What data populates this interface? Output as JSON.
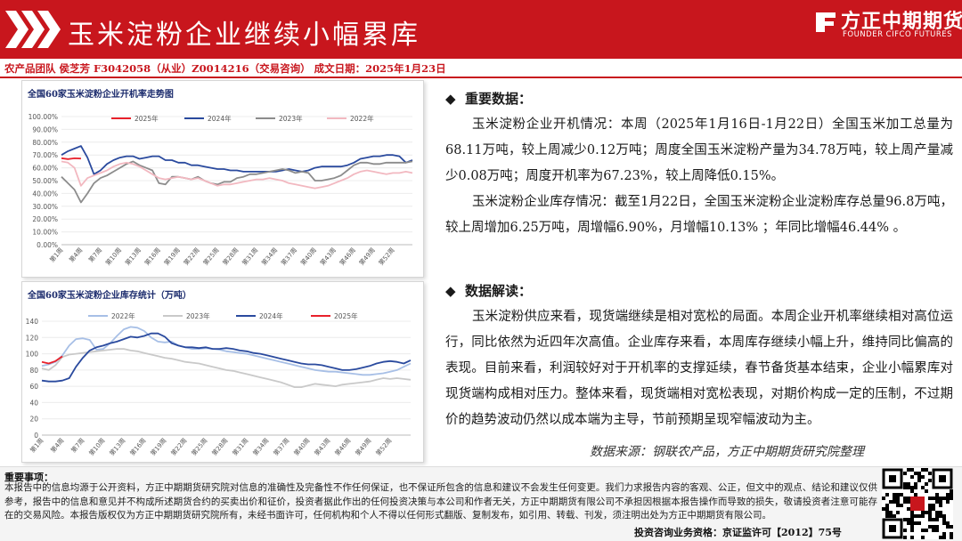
{
  "header": {
    "title": "玉米淀粉企业继续小幅累库",
    "brand_cn": "方正中期期货",
    "brand_en": "FOUNDER CIFCO FUTURES",
    "colors": {
      "brand_red": "#c8161d"
    }
  },
  "subline": "农产品团队  侯芝芳   F3042058（从业）Z0014216（交易咨询）  成文日期：2025年1月23日",
  "right": {
    "key_data_heading": "重要数据：",
    "key_data_p1": "玉米淀粉企业开机情况：本周（2025年1月16日-1月22日）全国玉米加工总量为68.11万吨，较上周减少0.12万吨；周度全国玉米淀粉产量为34.78万吨，较上周产量减少0.08万吨；周度开机率为67.23%，较上周降低0.15%。",
    "key_data_p2": "玉米淀粉企业库存情况：截至1月22日，全国玉米淀粉企业淀粉库存总量96.8万吨，较上周增加6.25万吨，周增幅6.90%，月增幅10.13% ；年同比增幅46.44% 。",
    "analysis_heading": "数据解读：",
    "analysis_p": "玉米淀粉供应来看，现货端继续是相对宽松的局面。本周企业开机率继续相对高位运行，同比依然为近四年次高值。企业库存来看，本周库存继续小幅上升，维持同比偏高的表现。目前来看，利润较好对于开机率的支撑延续，春节备货基本结束，企业小幅累库对现货端构成相对压力。整体来看，现货端相对宽松表现，对期价构成一定的压制，不过期价的趋势波动仍然以成本端为主导，节前预期呈现窄幅波动为主。",
    "source": "数据来源：钢联农产品，方正中期期货研究院整理"
  },
  "footer": {
    "title": "重要事项：",
    "body": "本报告中的信息均源于公开资料，方正中期期货研究院对信息的准确性及完备性不作任何保证，也不保证所包含的信息和建议不会发生任何变更。我们力求报告内容的客观、公正，但文中的观点、结论和建议仅供参考，报告中的信息和意见并不构成所述期货合约的买卖出价和征价，投资者据此作出的任何投资决策与本公司和作者无关，方正中期期货有限公司不承担因根据本报告操作而导致的损失，敬请投资者注意可能存在的交易风险。本报告版权仅为方正中期期货研究院所有，未经书面许可，任何机构和个人不得以任何形式翻版、复制发布，如引用、转载、刊发，须注明出处为方正中期期货有限公司。",
    "license": "投资咨询业务资格：京证监许可【2012】75号"
  },
  "chart_data": [
    {
      "type": "line",
      "title": "全国60家玉米淀粉企业开机率走势图",
      "yticks": [
        "0.00%",
        "10.00%",
        "20.00%",
        "30.00%",
        "40.00%",
        "50.00%",
        "60.00%",
        "70.00%",
        "80.00%",
        "90.00%",
        "100.00%"
      ],
      "ylim": [
        0,
        100
      ],
      "xticks": [
        "第1周",
        "第4周",
        "第7周",
        "第10周",
        "第13周",
        "第16周",
        "第19周",
        "第22周",
        "第25周",
        "第28周",
        "第31周",
        "第34周",
        "第37周",
        "第40周",
        "第43周",
        "第46周",
        "第49周",
        "第52周"
      ],
      "legend_position": "top",
      "series": [
        {
          "name": "2025年",
          "color": "#e8212b",
          "values": [
            67.5,
            66.8,
            67.4,
            67.2
          ]
        },
        {
          "name": "2024年",
          "color": "#2a4a9e",
          "values": [
            70,
            73,
            75,
            77,
            68,
            55,
            58,
            63,
            66,
            68,
            69,
            69,
            67,
            68,
            69,
            69,
            66,
            66,
            64,
            64,
            62,
            62,
            61,
            60,
            59,
            59,
            58,
            58,
            57,
            57,
            57,
            57,
            57,
            57,
            58,
            59,
            58,
            57,
            58,
            60,
            61,
            61,
            61,
            61,
            62,
            64,
            67,
            68,
            69,
            69,
            70,
            70,
            69,
            64,
            66
          ]
        },
        {
          "name": "2023年",
          "color": "#8c8c8c",
          "values": [
            53,
            48,
            43,
            33,
            40,
            48,
            52,
            54,
            57,
            60,
            63,
            65,
            62,
            60,
            58,
            48,
            47,
            53,
            53,
            52,
            51,
            53,
            50,
            48,
            47,
            49,
            49,
            52,
            53,
            55,
            55,
            56,
            57,
            58,
            59,
            58,
            56,
            57,
            56,
            50,
            50,
            51,
            52,
            54,
            58,
            62,
            64,
            64,
            63,
            63,
            64,
            64,
            64,
            64,
            65
          ]
        },
        {
          "name": "2022年",
          "color": "#f2b8c0",
          "values": [
            65,
            64,
            60,
            46,
            52,
            54,
            56,
            58,
            61,
            63,
            64,
            63,
            61,
            58,
            55,
            52,
            51,
            52,
            53,
            52,
            51,
            52,
            50,
            48,
            46,
            47,
            47,
            48,
            49,
            50,
            51,
            51,
            52,
            51,
            50,
            48,
            47,
            46,
            45,
            44,
            45,
            46,
            48,
            50,
            52,
            55,
            57,
            58,
            57,
            56,
            55,
            56,
            56,
            57,
            56
          ]
        }
      ]
    },
    {
      "type": "line",
      "title": "全国60家玉米淀粉企业库存统计（万吨）",
      "yticks": [
        "0",
        "20",
        "40",
        "60",
        "80",
        "100",
        "120",
        "140"
      ],
      "ylim": [
        0,
        140
      ],
      "xticks": [
        "第1周",
        "第4周",
        "第7周",
        "第10周",
        "第13周",
        "第16周",
        "第19周",
        "第22周",
        "第25周",
        "第28周",
        "第31周",
        "第34周",
        "第37周",
        "第40周",
        "第43周",
        "第46周",
        "第49周",
        "第52周"
      ],
      "legend_position": "top",
      "series": [
        {
          "name": "2022年",
          "color": "#a7bfe6",
          "values": [
            85,
            87,
            90,
            98,
            110,
            118,
            119,
            117,
            105,
            106,
            113,
            122,
            130,
            133,
            132,
            128,
            120,
            115,
            114,
            115,
            110,
            108,
            106,
            106,
            107,
            106,
            105,
            103,
            102,
            101,
            100,
            98,
            96,
            94,
            92,
            90,
            88,
            86,
            84,
            82,
            80,
            79,
            78,
            78,
            77,
            76,
            75,
            74,
            74,
            75,
            76,
            78,
            80,
            84,
            88
          ]
        },
        {
          "name": "2023年",
          "color": "#c9c9c9",
          "values": [
            82,
            80,
            86,
            96,
            99,
            100,
            101,
            102,
            103,
            104,
            105,
            106,
            106,
            104,
            103,
            101,
            99,
            97,
            95,
            94,
            92,
            90,
            89,
            88,
            86,
            84,
            82,
            80,
            79,
            77,
            75,
            73,
            71,
            69,
            67,
            65,
            62,
            59,
            59,
            61,
            63,
            62,
            61,
            60,
            62,
            63,
            64,
            65,
            66,
            68,
            70,
            69,
            70,
            69,
            68
          ]
        },
        {
          "name": "2024年",
          "color": "#2a4a9e",
          "values": [
            67,
            66,
            66,
            67,
            70,
            84,
            95,
            104,
            108,
            110,
            113,
            115,
            118,
            121,
            120,
            122,
            125,
            125,
            121,
            113,
            110,
            108,
            108,
            107,
            108,
            106,
            106,
            107,
            106,
            104,
            103,
            101,
            100,
            98,
            96,
            94,
            92,
            90,
            88,
            87,
            87,
            86,
            84,
            82,
            80,
            80,
            81,
            83,
            85,
            88,
            90,
            91,
            90,
            88,
            92
          ]
        },
        {
          "name": "2025年",
          "color": "#e8212b",
          "values": [
            90,
            88,
            91,
            96.8
          ]
        }
      ]
    }
  ]
}
